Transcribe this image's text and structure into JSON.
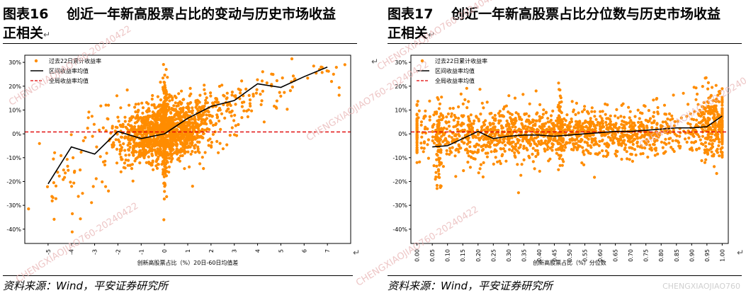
{
  "left": {
    "title_line1": "图表16　 创近一年新高股票占比的变动与历史市场收益",
    "title_line2": "正相关",
    "source": "资料来源：Wind，平安证券研究所"
  },
  "right": {
    "title_line1": "图表17　 创近一年新高股票占比分位数与历史市场收益",
    "title_line2": "正相关",
    "source": "资料来源：Wind，平安证券研究所"
  },
  "enter_mark": "↵",
  "watermark": "CHENGXIAOJIAO760-20240422",
  "corner_watermark": "CHENGXIAOJIAO760",
  "colors": {
    "scatter": "#ff8c00",
    "line": "#000000",
    "refline": "#e00000"
  },
  "chart_data": [
    {
      "type": "scatter",
      "xlabel": "创新高股票占比（%）20日-60日均值差",
      "ylabel": "",
      "xlim": [
        -6,
        8
      ],
      "ylim": [
        -0.46,
        0.33
      ],
      "xticks": [
        -5,
        -4,
        -3,
        -2,
        -1,
        0,
        1,
        2,
        3,
        4,
        5,
        6,
        7
      ],
      "xtick_labels": [
        "-5",
        "-4",
        "-3",
        "-2",
        "-1",
        "0",
        "1",
        "2",
        "3",
        "4",
        "5",
        "6",
        "7"
      ],
      "yticks": [
        0.3,
        0.2,
        0.1,
        0,
        -0.1,
        -0.2,
        -0.3,
        -0.4
      ],
      "ytick_labels": [
        "30%",
        "20%",
        "10%",
        "0%",
        "-10%",
        "-20%",
        "-30%",
        "-40%"
      ],
      "legend": {
        "placement": "top-left",
        "entries": [
          "过去22日累计收益率",
          "区间收益率均值",
          "全局收益率均值"
        ]
      },
      "series": [
        {
          "name": "区间收益率均值",
          "style": "line",
          "x": [
            -5,
            -4,
            -3,
            -2,
            -1,
            0,
            1,
            2,
            3,
            4,
            5,
            6,
            7
          ],
          "y": [
            -0.21,
            -0.055,
            -0.085,
            0.01,
            -0.02,
            0.0,
            0.065,
            0.115,
            0.14,
            0.21,
            0.195,
            0.24,
            0.28
          ]
        },
        {
          "name": "全局收益率均值",
          "style": "hline",
          "y": 0.008
        }
      ],
      "cloud": {
        "name": "过去22日累计收益率",
        "groups": [
          {
            "xc": 0,
            "xs": 0.9,
            "yc": 0.0,
            "ys": 0.06,
            "n": 900
          },
          {
            "xc": 0,
            "xs": 0.05,
            "yc": 0.0,
            "ys": 0.12,
            "n": 160
          },
          {
            "xc": 0.9,
            "xs": 0.8,
            "yc": 0.06,
            "ys": 0.05,
            "n": 260
          },
          {
            "xc": -1.0,
            "xs": 0.6,
            "yc": -0.03,
            "ys": 0.06,
            "n": 160
          },
          {
            "xc": 2.6,
            "xs": 0.9,
            "yc": 0.13,
            "ys": 0.04,
            "n": 90
          },
          {
            "xc": -2.6,
            "xs": 0.7,
            "yc": -0.05,
            "ys": 0.09,
            "n": 40
          },
          {
            "xc": 4.6,
            "xs": 1.0,
            "yc": 0.2,
            "ys": 0.03,
            "n": 30
          },
          {
            "xc": -4.5,
            "xs": 0.5,
            "yc": -0.2,
            "ys": 0.1,
            "n": 35
          },
          {
            "xc": 7.0,
            "xs": 0.3,
            "yc": 0.27,
            "ys": 0.02,
            "n": 12
          }
        ]
      }
    },
    {
      "type": "scatter",
      "xlabel": "创新高股票占比（%）分位数",
      "ylabel": "",
      "xlim": [
        -0.02,
        1.02
      ],
      "ylim": [
        -0.46,
        0.33
      ],
      "xticks": [
        0.0,
        0.05,
        0.1,
        0.15,
        0.2,
        0.25,
        0.3,
        0.35,
        0.4,
        0.45,
        0.5,
        0.55,
        0.6,
        0.65,
        0.7,
        0.75,
        0.8,
        0.85,
        0.9,
        0.95,
        1.0
      ],
      "xtick_labels": [
        "0.00",
        "0.05",
        "0.10",
        "0.15",
        "0.20",
        "0.25",
        "0.30",
        "0.35",
        "0.40",
        "0.45",
        "0.50",
        "0.55",
        "0.60",
        "0.65",
        "0.70",
        "0.75",
        "0.80",
        "0.85",
        "0.90",
        "0.95",
        "1.00"
      ],
      "yticks": [
        0.3,
        0.2,
        0.1,
        0,
        -0.1,
        -0.2,
        -0.3,
        -0.4
      ],
      "ytick_labels": [
        "30%",
        "20%",
        "10%",
        "0%",
        "-10%",
        "-20%",
        "-30%",
        "-40%"
      ],
      "legend": {
        "placement": "top-left",
        "entries": [
          "过去22日累计收益率",
          "区间收益率均值",
          "全局收益率均值"
        ]
      },
      "series": [
        {
          "name": "区间收益率均值",
          "style": "line",
          "x": [
            0.05,
            0.1,
            0.15,
            0.2,
            0.25,
            0.3,
            0.35,
            0.4,
            0.45,
            0.5,
            0.55,
            0.6,
            0.65,
            0.7,
            0.75,
            0.8,
            0.85,
            0.9,
            0.95,
            1.0
          ],
          "y": [
            -0.055,
            -0.05,
            -0.02,
            0.01,
            -0.02,
            -0.01,
            -0.005,
            -0.005,
            -0.01,
            -0.005,
            0.0,
            0.005,
            0.01,
            0.01,
            0.015,
            0.02,
            0.025,
            0.025,
            0.03,
            0.075
          ]
        },
        {
          "name": "全局收益率均值",
          "style": "hline",
          "y": 0.008
        }
      ],
      "cloud": {
        "name": "过去22日累计收益率",
        "groups": [
          {
            "xc": 0.5,
            "xs": 0.28,
            "yc": 0.0,
            "ys": 0.05,
            "n": 1300,
            "clip": [
              0.0,
              1.0
            ]
          },
          {
            "xc": 0.97,
            "xs": 0.03,
            "yc": 0.06,
            "ys": 0.07,
            "n": 220,
            "clip": [
              0.9,
              1.0
            ]
          },
          {
            "xc": 0.07,
            "xs": 0.005,
            "yc": -0.08,
            "ys": 0.1,
            "n": 60,
            "clip": [
              0.0,
              1.0
            ]
          },
          {
            "xc": 0.47,
            "xs": 0.004,
            "yc": 0.0,
            "ys": 0.09,
            "n": 60,
            "clip": [
              0.0,
              1.0
            ]
          },
          {
            "xc": 0.2,
            "xs": 0.12,
            "yc": 0.0,
            "ys": 0.08,
            "n": 200,
            "clip": [
              0.0,
              1.0
            ]
          }
        ]
      }
    }
  ]
}
